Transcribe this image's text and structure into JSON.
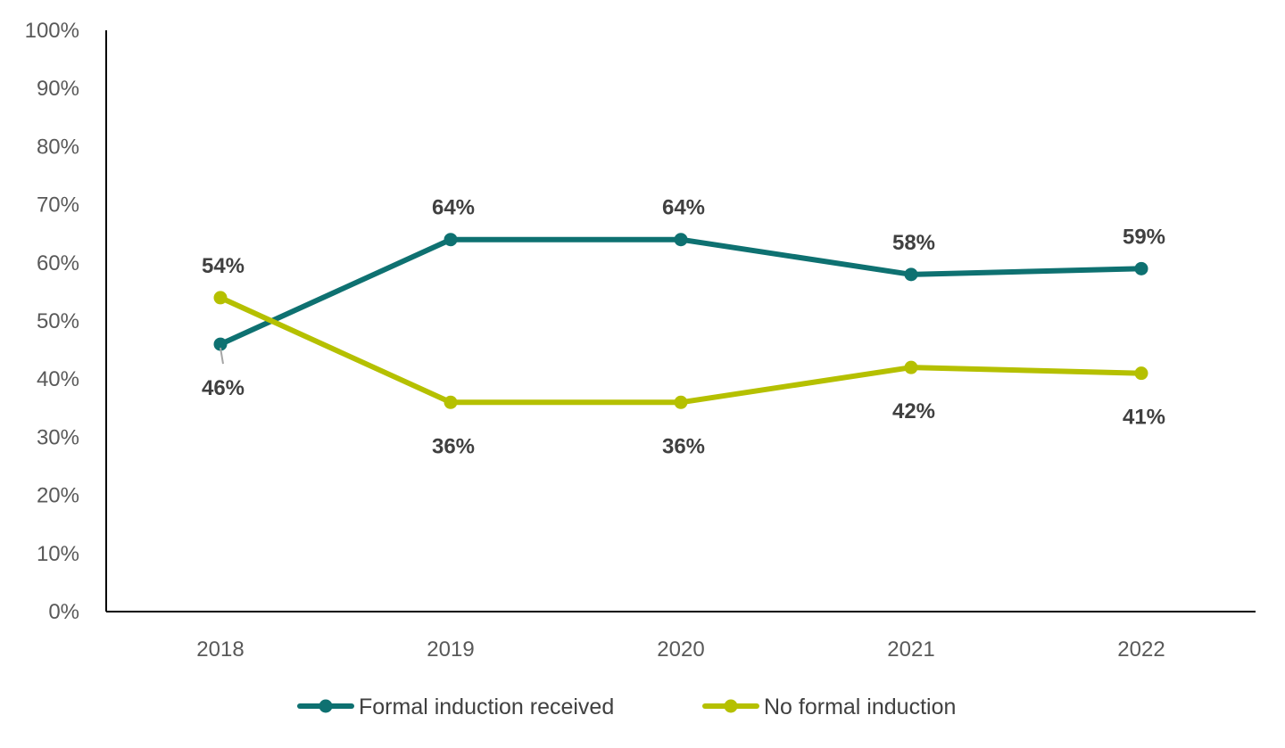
{
  "chart_data": {
    "type": "line",
    "categories": [
      "2018",
      "2019",
      "2020",
      "2021",
      "2022"
    ],
    "ylim": [
      0,
      100
    ],
    "y_ticks": [
      0,
      10,
      20,
      30,
      40,
      50,
      60,
      70,
      80,
      90,
      100
    ],
    "y_tick_suffix": "%",
    "grid": false,
    "legend_position": "bottom",
    "series": [
      {
        "name": "Formal induction received",
        "color": "#0e7171",
        "values": [
          46,
          64,
          64,
          58,
          59
        ],
        "labels": [
          "46%",
          "64%",
          "64%",
          "58%",
          "59%"
        ]
      },
      {
        "name": "No formal induction",
        "color": "#b5c000",
        "values": [
          54,
          36,
          36,
          42,
          41
        ],
        "labels": [
          "54%",
          "36%",
          "36%",
          "42%",
          "41%"
        ]
      }
    ]
  }
}
